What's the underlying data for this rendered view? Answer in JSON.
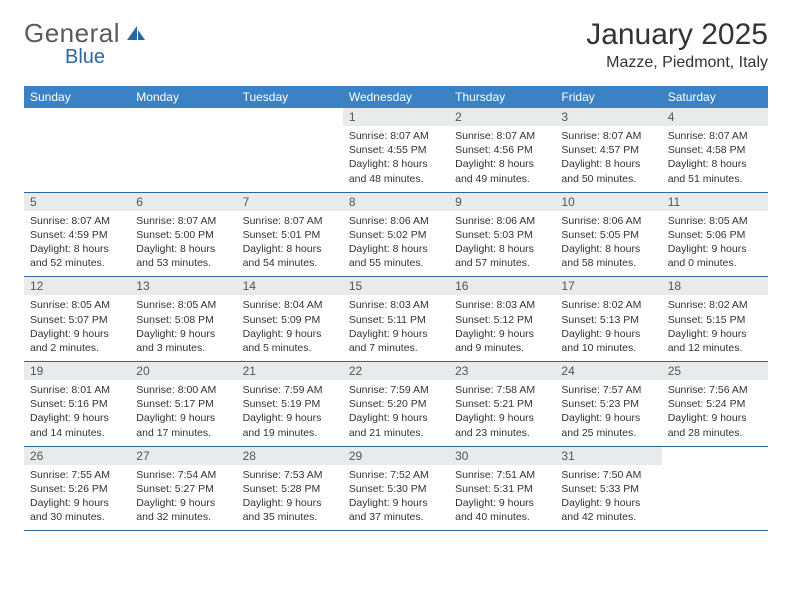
{
  "brand": {
    "name": "General",
    "accent_word": "Blue",
    "accent_color": "#2c66a0"
  },
  "header": {
    "title": "January 2025",
    "location": "Mazze, Piedmont, Italy"
  },
  "styling": {
    "header_band_color": "#3a82c4",
    "header_text_color": "#ffffff",
    "daynum_bg": "#e9eaec",
    "daynum_color": "#555555",
    "row_border_color": "#2c66a0",
    "body_text_color": "#333333",
    "body_fontsize": 10.5,
    "header_fontsize": 12,
    "title_fontsize": 30,
    "location_fontsize": 16,
    "background_color": "#ffffff"
  },
  "day_names": [
    "Sunday",
    "Monday",
    "Tuesday",
    "Wednesday",
    "Thursday",
    "Friday",
    "Saturday"
  ],
  "leading_blanks": 3,
  "days": [
    {
      "n": "1",
      "sunrise": "8:07 AM",
      "sunset": "4:55 PM",
      "dh": "8",
      "dm": "48"
    },
    {
      "n": "2",
      "sunrise": "8:07 AM",
      "sunset": "4:56 PM",
      "dh": "8",
      "dm": "49"
    },
    {
      "n": "3",
      "sunrise": "8:07 AM",
      "sunset": "4:57 PM",
      "dh": "8",
      "dm": "50"
    },
    {
      "n": "4",
      "sunrise": "8:07 AM",
      "sunset": "4:58 PM",
      "dh": "8",
      "dm": "51"
    },
    {
      "n": "5",
      "sunrise": "8:07 AM",
      "sunset": "4:59 PM",
      "dh": "8",
      "dm": "52"
    },
    {
      "n": "6",
      "sunrise": "8:07 AM",
      "sunset": "5:00 PM",
      "dh": "8",
      "dm": "53"
    },
    {
      "n": "7",
      "sunrise": "8:07 AM",
      "sunset": "5:01 PM",
      "dh": "8",
      "dm": "54"
    },
    {
      "n": "8",
      "sunrise": "8:06 AM",
      "sunset": "5:02 PM",
      "dh": "8",
      "dm": "55"
    },
    {
      "n": "9",
      "sunrise": "8:06 AM",
      "sunset": "5:03 PM",
      "dh": "8",
      "dm": "57"
    },
    {
      "n": "10",
      "sunrise": "8:06 AM",
      "sunset": "5:05 PM",
      "dh": "8",
      "dm": "58"
    },
    {
      "n": "11",
      "sunrise": "8:05 AM",
      "sunset": "5:06 PM",
      "dh": "9",
      "dm": "0"
    },
    {
      "n": "12",
      "sunrise": "8:05 AM",
      "sunset": "5:07 PM",
      "dh": "9",
      "dm": "2"
    },
    {
      "n": "13",
      "sunrise": "8:05 AM",
      "sunset": "5:08 PM",
      "dh": "9",
      "dm": "3"
    },
    {
      "n": "14",
      "sunrise": "8:04 AM",
      "sunset": "5:09 PM",
      "dh": "9",
      "dm": "5"
    },
    {
      "n": "15",
      "sunrise": "8:03 AM",
      "sunset": "5:11 PM",
      "dh": "9",
      "dm": "7"
    },
    {
      "n": "16",
      "sunrise": "8:03 AM",
      "sunset": "5:12 PM",
      "dh": "9",
      "dm": "9"
    },
    {
      "n": "17",
      "sunrise": "8:02 AM",
      "sunset": "5:13 PM",
      "dh": "9",
      "dm": "10"
    },
    {
      "n": "18",
      "sunrise": "8:02 AM",
      "sunset": "5:15 PM",
      "dh": "9",
      "dm": "12"
    },
    {
      "n": "19",
      "sunrise": "8:01 AM",
      "sunset": "5:16 PM",
      "dh": "9",
      "dm": "14"
    },
    {
      "n": "20",
      "sunrise": "8:00 AM",
      "sunset": "5:17 PM",
      "dh": "9",
      "dm": "17"
    },
    {
      "n": "21",
      "sunrise": "7:59 AM",
      "sunset": "5:19 PM",
      "dh": "9",
      "dm": "19"
    },
    {
      "n": "22",
      "sunrise": "7:59 AM",
      "sunset": "5:20 PM",
      "dh": "9",
      "dm": "21"
    },
    {
      "n": "23",
      "sunrise": "7:58 AM",
      "sunset": "5:21 PM",
      "dh": "9",
      "dm": "23"
    },
    {
      "n": "24",
      "sunrise": "7:57 AM",
      "sunset": "5:23 PM",
      "dh": "9",
      "dm": "25"
    },
    {
      "n": "25",
      "sunrise": "7:56 AM",
      "sunset": "5:24 PM",
      "dh": "9",
      "dm": "28"
    },
    {
      "n": "26",
      "sunrise": "7:55 AM",
      "sunset": "5:26 PM",
      "dh": "9",
      "dm": "30"
    },
    {
      "n": "27",
      "sunrise": "7:54 AM",
      "sunset": "5:27 PM",
      "dh": "9",
      "dm": "32"
    },
    {
      "n": "28",
      "sunrise": "7:53 AM",
      "sunset": "5:28 PM",
      "dh": "9",
      "dm": "35"
    },
    {
      "n": "29",
      "sunrise": "7:52 AM",
      "sunset": "5:30 PM",
      "dh": "9",
      "dm": "37"
    },
    {
      "n": "30",
      "sunrise": "7:51 AM",
      "sunset": "5:31 PM",
      "dh": "9",
      "dm": "40"
    },
    {
      "n": "31",
      "sunrise": "7:50 AM",
      "sunset": "5:33 PM",
      "dh": "9",
      "dm": "42"
    }
  ]
}
